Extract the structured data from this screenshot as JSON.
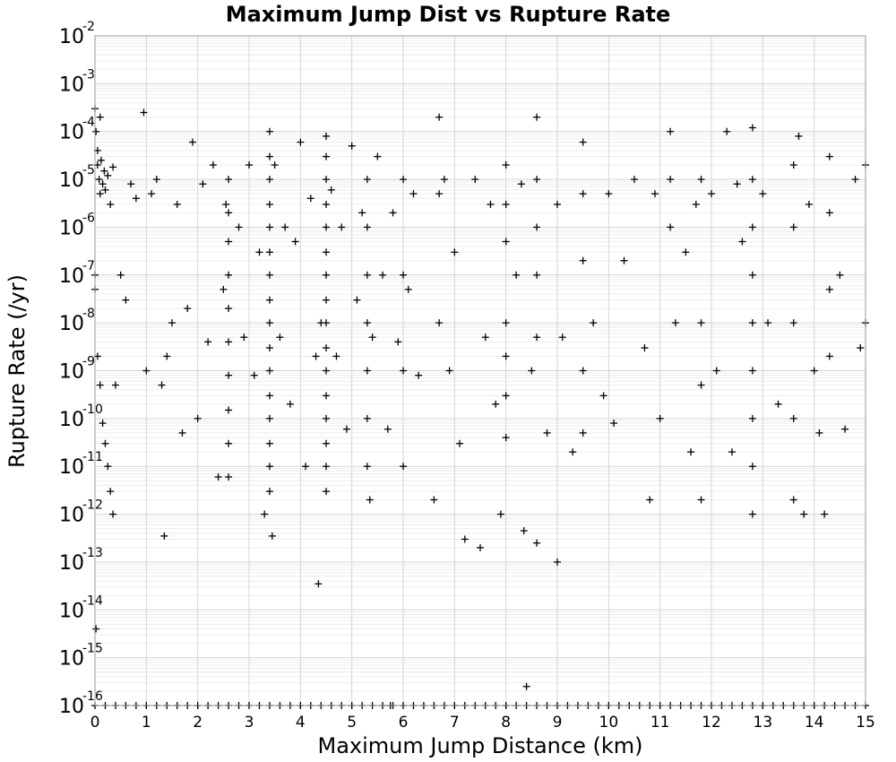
{
  "chart_data": {
    "type": "scatter",
    "title": "Maximum Jump Dist vs Rupture Rate",
    "xlabel": "Maximum Jump Distance (km)",
    "ylabel": "Rupture Rate (/yr)",
    "xlim": [
      0,
      15
    ],
    "ylim": [
      1e-16,
      0.01
    ],
    "yscale": "log",
    "grid": true,
    "marker": "plus",
    "marker_color": "#000000",
    "xticks": [
      "0",
      "1",
      "2",
      "3",
      "4",
      "5",
      "6",
      "7",
      "8",
      "9",
      "10",
      "11",
      "12",
      "13",
      "14",
      "15"
    ],
    "yticks": [
      {
        "base": "10",
        "exp": "-2"
      },
      {
        "base": "10",
        "exp": "-3"
      },
      {
        "base": "10",
        "exp": "-4"
      },
      {
        "base": "10",
        "exp": "-5"
      },
      {
        "base": "10",
        "exp": "-6"
      },
      {
        "base": "10",
        "exp": "-7"
      },
      {
        "base": "10",
        "exp": "-8"
      },
      {
        "base": "10",
        "exp": "-9"
      },
      {
        "base": "10",
        "exp": "-10"
      },
      {
        "base": "10",
        "exp": "-11"
      },
      {
        "base": "10",
        "exp": "-12"
      },
      {
        "base": "10",
        "exp": "-13"
      },
      {
        "base": "10",
        "exp": "-14"
      },
      {
        "base": "10",
        "exp": "-15"
      },
      {
        "base": "10",
        "exp": "-16"
      }
    ],
    "points": [
      [
        0.0,
        0.0003
      ],
      [
        0.02,
        0.0001
      ],
      [
        0.05,
        2e-05
      ],
      [
        0.08,
        1e-05
      ],
      [
        0.1,
        5e-06
      ],
      [
        0.12,
        2.5e-05
      ],
      [
        0.15,
        8e-06
      ],
      [
        0.18,
        1.5e-05
      ],
      [
        0.2,
        6e-06
      ],
      [
        0.25,
        1.2e-05
      ],
      [
        0.3,
        3e-06
      ],
      [
        0.35,
        1.8e-05
      ],
      [
        0.05,
        4e-05
      ],
      [
        0.1,
        0.0002
      ],
      [
        0.0,
        5e-08
      ],
      [
        0.0,
        1e-07
      ],
      [
        0.02,
        4e-15
      ],
      [
        0.05,
        2e-09
      ],
      [
        0.1,
        5e-10
      ],
      [
        0.15,
        8e-11
      ],
      [
        0.2,
        3e-11
      ],
      [
        0.25,
        1e-11
      ],
      [
        0.3,
        3e-12
      ],
      [
        0.35,
        1e-12
      ],
      [
        0.4,
        5e-10
      ],
      [
        0.5,
        1e-07
      ],
      [
        0.6,
        3e-08
      ],
      [
        0.7,
        8e-06
      ],
      [
        0.8,
        4e-06
      ],
      [
        0.95,
        0.00025
      ],
      [
        1.0,
        1e-09
      ],
      [
        1.1,
        5e-06
      ],
      [
        1.2,
        1e-05
      ],
      [
        1.3,
        5e-10
      ],
      [
        1.35,
        3.5e-13
      ],
      [
        1.4,
        2e-09
      ],
      [
        1.5,
        1e-08
      ],
      [
        1.6,
        3e-06
      ],
      [
        1.7,
        5e-11
      ],
      [
        1.8,
        2e-08
      ],
      [
        1.9,
        6e-05
      ],
      [
        2.0,
        1e-10
      ],
      [
        2.1,
        8e-06
      ],
      [
        2.2,
        4e-09
      ],
      [
        2.3,
        2e-05
      ],
      [
        2.4,
        6e-12
      ],
      [
        2.5,
        5e-08
      ],
      [
        2.55,
        3e-06
      ],
      [
        2.6,
        1e-05
      ],
      [
        2.6,
        2e-06
      ],
      [
        2.6,
        5e-07
      ],
      [
        2.6,
        1e-07
      ],
      [
        2.6,
        2e-08
      ],
      [
        2.6,
        4e-09
      ],
      [
        2.6,
        8e-10
      ],
      [
        2.6,
        1.5e-10
      ],
      [
        2.6,
        3e-11
      ],
      [
        2.6,
        6e-12
      ],
      [
        2.8,
        1e-06
      ],
      [
        2.9,
        5e-09
      ],
      [
        3.0,
        2e-05
      ],
      [
        3.1,
        8e-10
      ],
      [
        3.2,
        3e-07
      ],
      [
        3.3,
        1e-12
      ],
      [
        3.4,
        0.0001
      ],
      [
        3.4,
        3e-05
      ],
      [
        3.4,
        1e-05
      ],
      [
        3.4,
        3e-06
      ],
      [
        3.4,
        1e-06
      ],
      [
        3.4,
        3e-07
      ],
      [
        3.4,
        1e-07
      ],
      [
        3.4,
        3e-08
      ],
      [
        3.4,
        1e-08
      ],
      [
        3.4,
        3e-09
      ],
      [
        3.4,
        1e-09
      ],
      [
        3.4,
        3e-10
      ],
      [
        3.4,
        1e-10
      ],
      [
        3.4,
        3e-11
      ],
      [
        3.4,
        1e-11
      ],
      [
        3.4,
        3e-12
      ],
      [
        3.45,
        3.5e-13
      ],
      [
        3.5,
        2e-05
      ],
      [
        3.6,
        5e-09
      ],
      [
        3.7,
        1e-06
      ],
      [
        3.8,
        2e-10
      ],
      [
        3.9,
        5e-07
      ],
      [
        4.0,
        6e-05
      ],
      [
        4.1,
        1e-11
      ],
      [
        4.2,
        4e-06
      ],
      [
        4.3,
        2e-09
      ],
      [
        4.35,
        3.5e-14
      ],
      [
        4.4,
        1e-08
      ],
      [
        4.5,
        8e-05
      ],
      [
        4.5,
        3e-05
      ],
      [
        4.5,
        1e-05
      ],
      [
        4.5,
        3e-06
      ],
      [
        4.5,
        1e-06
      ],
      [
        4.5,
        3e-07
      ],
      [
        4.5,
        1e-07
      ],
      [
        4.5,
        3e-08
      ],
      [
        4.5,
        1e-08
      ],
      [
        4.5,
        3e-09
      ],
      [
        4.5,
        1e-09
      ],
      [
        4.5,
        3e-10
      ],
      [
        4.5,
        1e-10
      ],
      [
        4.5,
        3e-11
      ],
      [
        4.5,
        1e-11
      ],
      [
        4.5,
        3e-12
      ],
      [
        4.6,
        6e-06
      ],
      [
        4.7,
        2e-09
      ],
      [
        4.8,
        1e-06
      ],
      [
        4.9,
        6e-11
      ],
      [
        5.0,
        5e-05
      ],
      [
        5.1,
        3e-08
      ],
      [
        5.2,
        2e-06
      ],
      [
        5.3,
        1e-05
      ],
      [
        5.3,
        1e-06
      ],
      [
        5.3,
        1e-07
      ],
      [
        5.3,
        1e-08
      ],
      [
        5.3,
        1e-09
      ],
      [
        5.3,
        1e-10
      ],
      [
        5.3,
        1e-11
      ],
      [
        5.35,
        2e-12
      ],
      [
        5.4,
        5e-09
      ],
      [
        5.5,
        3e-05
      ],
      [
        5.6,
        1e-07
      ],
      [
        5.7,
        6e-11
      ],
      [
        5.75,
        1e-16
      ],
      [
        5.8,
        2e-06
      ],
      [
        5.9,
        4e-09
      ],
      [
        6.0,
        1e-05
      ],
      [
        6.0,
        1e-07
      ],
      [
        6.0,
        1e-09
      ],
      [
        6.0,
        1e-11
      ],
      [
        6.1,
        5e-08
      ],
      [
        6.2,
        5e-06
      ],
      [
        6.3,
        8e-10
      ],
      [
        6.6,
        2e-12
      ],
      [
        6.7,
        0.0002
      ],
      [
        6.7,
        5e-06
      ],
      [
        6.7,
        1e-08
      ],
      [
        6.8,
        1e-05
      ],
      [
        6.9,
        1e-09
      ],
      [
        7.0,
        3e-07
      ],
      [
        7.1,
        3e-11
      ],
      [
        7.2,
        3e-13
      ],
      [
        7.4,
        1e-05
      ],
      [
        7.5,
        2e-13
      ],
      [
        7.6,
        5e-09
      ],
      [
        7.7,
        3e-06
      ],
      [
        7.8,
        2e-10
      ],
      [
        7.9,
        1e-12
      ],
      [
        8.0,
        2e-05
      ],
      [
        8.0,
        3e-06
      ],
      [
        8.0,
        5e-07
      ],
      [
        8.0,
        1e-08
      ],
      [
        8.0,
        2e-09
      ],
      [
        8.0,
        3e-10
      ],
      [
        8.0,
        4e-11
      ],
      [
        8.2,
        1e-07
      ],
      [
        8.3,
        8e-06
      ],
      [
        8.35,
        4.5e-13
      ],
      [
        8.4,
        2.5e-16
      ],
      [
        8.5,
        1e-09
      ],
      [
        8.6,
        0.0002
      ],
      [
        8.6,
        1e-05
      ],
      [
        8.6,
        1e-06
      ],
      [
        8.6,
        1e-07
      ],
      [
        8.6,
        5e-09
      ],
      [
        8.6,
        2.5e-13
      ],
      [
        8.8,
        5e-11
      ],
      [
        9.0,
        3e-06
      ],
      [
        9.0,
        1e-13
      ],
      [
        9.1,
        5e-09
      ],
      [
        9.3,
        2e-11
      ],
      [
        9.5,
        6e-05
      ],
      [
        9.5,
        5e-06
      ],
      [
        9.5,
        2e-07
      ],
      [
        9.5,
        1e-09
      ],
      [
        9.5,
        5e-11
      ],
      [
        9.7,
        1e-08
      ],
      [
        9.9,
        3e-10
      ],
      [
        10.0,
        5e-06
      ],
      [
        10.1,
        8e-11
      ],
      [
        10.3,
        2e-07
      ],
      [
        10.5,
        1e-05
      ],
      [
        10.7,
        3e-09
      ],
      [
        10.8,
        2e-12
      ],
      [
        10.9,
        5e-06
      ],
      [
        11.0,
        1e-10
      ],
      [
        11.2,
        0.0001
      ],
      [
        11.2,
        1e-05
      ],
      [
        11.2,
        1e-06
      ],
      [
        11.3,
        1e-08
      ],
      [
        11.5,
        3e-07
      ],
      [
        11.6,
        2e-11
      ],
      [
        11.7,
        3e-06
      ],
      [
        11.8,
        1e-05
      ],
      [
        11.8,
        1e-08
      ],
      [
        11.8,
        5e-10
      ],
      [
        11.8,
        2e-12
      ],
      [
        12.0,
        5e-06
      ],
      [
        12.1,
        1e-09
      ],
      [
        12.3,
        0.0001
      ],
      [
        12.4,
        2e-11
      ],
      [
        12.5,
        8e-06
      ],
      [
        12.6,
        5e-07
      ],
      [
        12.8,
        0.00012
      ],
      [
        12.8,
        1e-05
      ],
      [
        12.8,
        1e-06
      ],
      [
        12.8,
        1e-07
      ],
      [
        12.8,
        1e-08
      ],
      [
        12.8,
        1e-09
      ],
      [
        12.8,
        1e-10
      ],
      [
        12.8,
        1e-11
      ],
      [
        12.8,
        1e-12
      ],
      [
        13.0,
        5e-06
      ],
      [
        13.1,
        1e-08
      ],
      [
        13.3,
        2e-10
      ],
      [
        13.6,
        2e-05
      ],
      [
        13.6,
        1e-06
      ],
      [
        13.6,
        1e-08
      ],
      [
        13.6,
        1e-10
      ],
      [
        13.6,
        2e-12
      ],
      [
        13.7,
        8e-05
      ],
      [
        13.8,
        1e-12
      ],
      [
        13.9,
        3e-06
      ],
      [
        14.0,
        1e-09
      ],
      [
        14.1,
        5e-11
      ],
      [
        14.2,
        1e-12
      ],
      [
        14.3,
        3e-05
      ],
      [
        14.3,
        2e-06
      ],
      [
        14.3,
        5e-08
      ],
      [
        14.3,
        2e-09
      ],
      [
        14.5,
        1e-07
      ],
      [
        14.6,
        6e-11
      ],
      [
        14.8,
        1e-05
      ],
      [
        14.9,
        3e-09
      ],
      [
        15.0,
        2e-05
      ],
      [
        15.0,
        1e-08
      ]
    ],
    "floor_points_x": [
      0.0,
      0.2,
      0.4,
      0.6,
      0.8,
      1.0,
      1.2,
      1.4,
      1.6,
      1.8,
      2.0,
      2.2,
      2.4,
      2.6,
      2.8,
      3.0,
      3.2,
      3.4,
      3.6,
      3.8,
      4.0,
      4.2,
      4.4,
      4.6,
      4.8,
      5.0,
      5.2,
      5.4,
      5.6,
      5.8,
      6.0,
      6.2,
      6.4,
      6.6,
      6.8,
      7.0,
      7.2,
      7.4,
      7.6,
      7.8,
      8.0,
      8.2,
      8.4,
      8.6,
      8.8,
      9.0,
      9.2,
      9.4,
      9.6,
      9.8,
      10.0,
      10.2,
      10.4,
      10.6,
      10.8,
      11.0,
      11.2,
      11.4,
      11.6,
      11.8,
      12.0,
      12.2,
      12.4,
      12.6,
      12.8,
      13.0,
      13.2,
      13.4,
      13.6,
      13.8,
      14.0,
      14.2,
      14.4,
      14.6,
      14.8,
      15.0
    ],
    "floor_value": 1e-16
  }
}
